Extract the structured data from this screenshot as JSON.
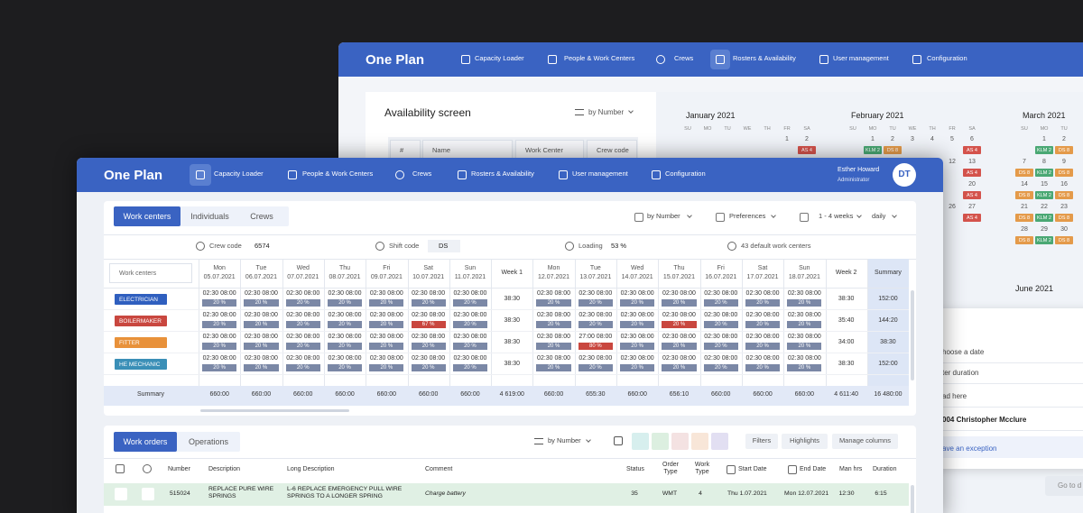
{
  "back": {
    "brand": "One Plan",
    "nav": [
      {
        "label": "Capacity Loader"
      },
      {
        "label": "People & Work Centers"
      },
      {
        "label": "Crews"
      },
      {
        "label": "Rosters & Availability",
        "active": true
      },
      {
        "label": "User management"
      },
      {
        "label": "Configuration"
      }
    ],
    "panel": {
      "title": "Availability screen",
      "sort": "by Number",
      "headers": [
        "#",
        "Name",
        "Work Center",
        "Crew code"
      ]
    },
    "badge_colors": {
      "AS 4": "#d4534c",
      "DS 8": "#e49a4a",
      "KLM 2": "#4aa874"
    },
    "months": [
      {
        "name": "January 2021",
        "weekdays": [
          "SU",
          "MO",
          "TU",
          "WE",
          "TH",
          "FR",
          "SA"
        ],
        "weeks": [
          {
            "days": [
              null,
              null,
              null,
              null,
              null,
              "1",
              "2"
            ],
            "badges": [
              null,
              null,
              null,
              null,
              null,
              null,
              "AS 4"
            ]
          }
        ]
      },
      {
        "name": "February 2021",
        "weekdays": [
          "SU",
          "MO",
          "TU",
          "WE",
          "TH",
          "FR",
          "SA"
        ],
        "weeks": [
          {
            "days": [
              null,
              "1",
              "2",
              "3",
              "4",
              "5",
              "6"
            ],
            "badges": [
              null,
              "KLM 2",
              "DS 8",
              null,
              null,
              null,
              "AS 4"
            ]
          },
          {
            "days": [
              null,
              null,
              null,
              null,
              null,
              "12",
              "13"
            ],
            "badges": [
              null,
              null,
              null,
              null,
              null,
              null,
              "AS 4"
            ]
          },
          {
            "days": [
              null,
              null,
              null,
              null,
              null,
              null,
              "20"
            ],
            "badges": [
              null,
              null,
              null,
              null,
              null,
              null,
              "AS 4"
            ]
          },
          {
            "days": [
              null,
              null,
              null,
              null,
              null,
              "26",
              "27"
            ],
            "badges": [
              null,
              null,
              null,
              null,
              null,
              null,
              "AS 4"
            ]
          }
        ]
      },
      {
        "name": "March 2021",
        "weekdays": [
          "SU",
          "MO",
          "TU"
        ],
        "weeks": [
          {
            "days": [
              null,
              "1",
              "2"
            ],
            "badges": [
              null,
              "KLM 2",
              "DS 8"
            ]
          },
          {
            "days": [
              "7",
              "8",
              "9"
            ],
            "badges": [
              "DS 8",
              "KLM 2",
              "DS 8"
            ]
          },
          {
            "days": [
              "14",
              "15",
              "16"
            ],
            "badges": [
              "DS 8",
              "KLM 2",
              "DS 8"
            ]
          },
          {
            "days": [
              "21",
              "22",
              "23"
            ],
            "badges": [
              "DS 8",
              "KLM 2",
              "DS 8"
            ]
          },
          {
            "days": [
              "28",
              "29",
              "30"
            ],
            "badges": [
              "DS 8",
              "KLM 2",
              "DS 8"
            ]
          }
        ]
      }
    ],
    "june": "June 2021",
    "popup": [
      "hoose a date",
      "ter duration",
      "ad here",
      "004 Christopher Mcclure",
      "ave an exception"
    ],
    "go_to": "Go to d"
  },
  "front": {
    "brand": "One Plan",
    "nav": [
      {
        "label": "Capacity Loader",
        "active": true
      },
      {
        "label": "People & Work Centers"
      },
      {
        "label": "Crews"
      },
      {
        "label": "Rosters & Availability"
      },
      {
        "label": "User management"
      },
      {
        "label": "Configuration"
      }
    ],
    "user": {
      "name": "Esther Howard",
      "role": "Administrator",
      "initials": "DT"
    },
    "tabs": [
      {
        "label": "Work centers",
        "active": true
      },
      {
        "label": "Individuals"
      },
      {
        "label": "Crews"
      }
    ],
    "controls": [
      "by Number",
      "Preferences",
      "1 - 4 weeks",
      "daily"
    ],
    "info": [
      {
        "label": "Crew code",
        "value": "6574"
      },
      {
        "label": "Shift code",
        "value": "DS"
      },
      {
        "label": "Loading",
        "value": "53 %"
      },
      {
        "label": "43 default work centers"
      }
    ],
    "grid": {
      "corner": "Work centers",
      "load_color": "#7b88a6",
      "columns": [
        {
          "day": "Mon",
          "date": "05.07.2021"
        },
        {
          "day": "Tue",
          "date": "06.07.2021"
        },
        {
          "day": "Wed",
          "date": "07.07.2021"
        },
        {
          "day": "Thu",
          "date": "08.07.2021"
        },
        {
          "day": "Fri",
          "date": "09.07.2021"
        },
        {
          "day": "Sat",
          "date": "10.07.2021"
        },
        {
          "day": "Sun",
          "date": "11.07.2021"
        },
        {
          "label": "Week 1"
        },
        {
          "day": "Mon",
          "date": "12.07.2021"
        },
        {
          "day": "Tue",
          "date": "13.07.2021"
        },
        {
          "day": "Wed",
          "date": "14.07.2021"
        },
        {
          "day": "Thu",
          "date": "15.07.2021"
        },
        {
          "day": "Fri",
          "date": "16.07.2021"
        },
        {
          "day": "Sat",
          "date": "17.07.2021"
        },
        {
          "day": "Sun",
          "date": "18.07.2021"
        },
        {
          "label": "Week 2"
        },
        {
          "label": "Summary"
        }
      ],
      "rows": [
        {
          "name": "ELECTRICIAN",
          "color": "#2f5fbf",
          "cells": [
            {
              "time": "02:30 08:00",
              "load": "20 %"
            },
            {
              "time": "02:30 08:00",
              "load": "20 %"
            },
            {
              "time": "02:30 08:00",
              "load": "20 %"
            },
            {
              "time": "02:30 08:00",
              "load": "20 %"
            },
            {
              "time": "02:30 08:00",
              "load": "20 %"
            },
            {
              "time": "02:30 08:00",
              "load": "20 %"
            },
            {
              "time": "02:30 08:00",
              "load": "20 %"
            },
            "38:30",
            {
              "time": "02:30 08:00",
              "load": "20 %"
            },
            {
              "time": "02:30 08:00",
              "load": "20 %"
            },
            {
              "time": "02:30 08:00",
              "load": "20 %"
            },
            {
              "time": "02:30 08:00",
              "load": "20 %"
            },
            {
              "time": "02:30 08:00",
              "load": "20 %"
            },
            {
              "time": "02:30 08:00",
              "load": "20 %"
            },
            {
              "time": "02:30 08:00",
              "load": "20 %"
            },
            "38:30",
            "152:00"
          ]
        },
        {
          "name": "BOILERMAKER",
          "color": "#c9473f",
          "cells": [
            {
              "time": "02:30 08:00",
              "load": "20 %"
            },
            {
              "time": "02:30 08:00",
              "load": "20 %"
            },
            {
              "time": "02:30 08:00",
              "load": "20 %"
            },
            {
              "time": "02:30 08:00",
              "load": "20 %"
            },
            {
              "time": "02:30 08:00",
              "load": "20 %"
            },
            {
              "time": "02:30 08:00",
              "load": "67 %",
              "color": "#c9473f"
            },
            {
              "time": "02:30 08:00",
              "load": "20 %"
            },
            "38:30",
            {
              "time": "02:30 08:00",
              "load": "20 %"
            },
            {
              "time": "02:30 08:00",
              "load": "20 %"
            },
            {
              "time": "02:30 08:00",
              "load": "20 %"
            },
            {
              "time": "02:30 08:00",
              "load": "20 %",
              "color": "#c9473f"
            },
            {
              "time": "02:30 08:00",
              "load": "20 %"
            },
            {
              "time": "02:30 08:00",
              "load": "20 %"
            },
            {
              "time": "02:30 08:00",
              "load": "20 %"
            },
            "35:40",
            "144:20"
          ]
        },
        {
          "name": "FITTER",
          "color": "#e8913a",
          "cells": [
            {
              "time": "02:30 08:00",
              "load": "20 %"
            },
            {
              "time": "02:30 08:00",
              "load": "20 %"
            },
            {
              "time": "02:30 08:00",
              "load": "20 %"
            },
            {
              "time": "02:30 08:00",
              "load": "20 %"
            },
            {
              "time": "02:30 08:00",
              "load": "20 %"
            },
            {
              "time": "02:30 08:00",
              "load": "20 %"
            },
            {
              "time": "02:30 08:00",
              "load": "20 %"
            },
            "38:30",
            {
              "time": "02:30 08:00",
              "load": "20 %"
            },
            {
              "time": "27:00 08:00",
              "load": "80 %",
              "color": "#c9473f"
            },
            {
              "time": "02:30 08:00",
              "load": "20 %"
            },
            {
              "time": "02:30 08:00",
              "load": "20 %"
            },
            {
              "time": "02:30 08:00",
              "load": "20 %"
            },
            {
              "time": "02:30 08:00",
              "load": "20 %"
            },
            {
              "time": "02:30 08:00",
              "load": "20 %"
            },
            "34:00",
            "38:30"
          ]
        },
        {
          "name": "HE MECHANIC",
          "color": "#3a8fb7",
          "cells": [
            {
              "time": "02:30 08:00",
              "load": "20 %"
            },
            {
              "time": "02:30 08:00",
              "load": "20 %"
            },
            {
              "time": "02:30 08:00",
              "load": "20 %"
            },
            {
              "time": "02:30 08:00",
              "load": "20 %"
            },
            {
              "time": "02:30 08:00",
              "load": "20 %"
            },
            {
              "time": "02:30 08:00",
              "load": "20 %"
            },
            {
              "time": "02:30 08:00",
              "load": "20 %"
            },
            "38:30",
            {
              "time": "02:30 08:00",
              "load": "20 %"
            },
            {
              "time": "02:30 08:00",
              "load": "20 %"
            },
            {
              "time": "02:30 08:00",
              "load": "20 %"
            },
            {
              "time": "02:30 08:00",
              "load": "20 %"
            },
            {
              "time": "02:30 08:00",
              "load": "20 %"
            },
            {
              "time": "02:30 08:00",
              "load": "20 %"
            },
            {
              "time": "02:30 08:00",
              "load": "20 %"
            },
            "38:30",
            "152:00"
          ]
        }
      ],
      "summary": {
        "label": "Summary",
        "values": [
          "660:00",
          "660:00",
          "660:00",
          "660:00",
          "660:00",
          "660:00",
          "660:00",
          "4 619:00",
          "660:00",
          "655:30",
          "660:00",
          "656:10",
          "660:00",
          "660:00",
          "660:00",
          "4 611:40",
          "16 480:00"
        ]
      }
    },
    "orders": {
      "tabs": [
        {
          "label": "Work orders",
          "active": true
        },
        {
          "label": "Operations"
        }
      ],
      "sort": "by Number",
      "swatches": [
        "#d7efee",
        "#dcefe0",
        "#f4e2e2",
        "#f8e6d8",
        "#e2dff2"
      ],
      "buttons": [
        "Filters",
        "Highlights",
        "Manage columns"
      ],
      "headers": [
        "Number",
        "Description",
        "Long Description",
        "Comment",
        "Status",
        "Order Type",
        "Work Type",
        "Start Date",
        "End Date",
        "Man hrs",
        "Duration"
      ],
      "rows": [
        {
          "color": "#e0f0e4",
          "cells": [
            "515024",
            "REPLACE PURE WIRE SPRINGS",
            "L-6 REPLACE EMERGENCY PULL WIRE SPRINGS TO A LONGER SPRING",
            "Charge battery",
            "35",
            "WMT",
            "4",
            "Thu 1.07.2021",
            "Mon 12.07.2021",
            "12:30",
            "6:15"
          ]
        }
      ]
    }
  }
}
